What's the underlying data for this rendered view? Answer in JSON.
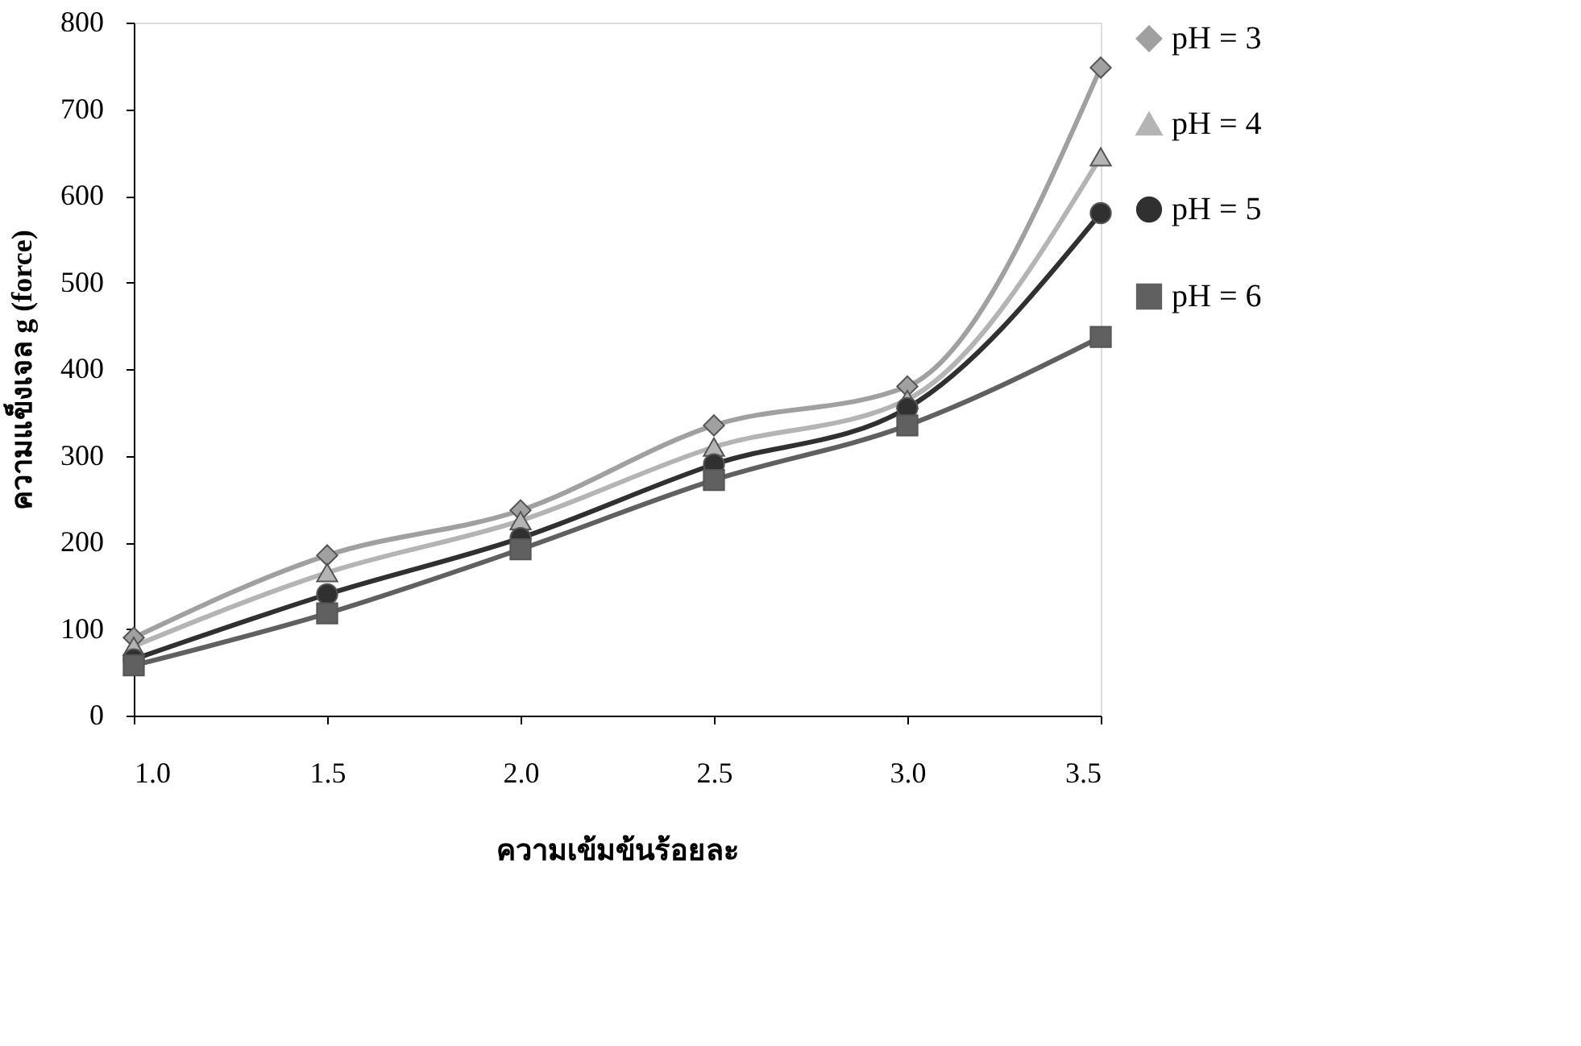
{
  "chart_data": {
    "type": "line",
    "xlabel": "ความเข้มข้นร้อยละ",
    "ylabel": "ความแข็งเจล g (force)",
    "x": [
      1.0,
      1.5,
      2.0,
      2.5,
      3.0,
      3.5
    ],
    "series": [
      {
        "name": "pH = 3",
        "color": "#a0a0a0",
        "marker": "diamond",
        "values": [
          90,
          185,
          237,
          335,
          380,
          748
        ]
      },
      {
        "name": "pH = 4",
        "color": "#b4b4b4",
        "marker": "triangle",
        "values": [
          80,
          165,
          225,
          310,
          365,
          645
        ]
      },
      {
        "name": "pH = 5",
        "color": "#303030",
        "marker": "circle",
        "values": [
          65,
          140,
          205,
          290,
          355,
          580
        ]
      },
      {
        "name": "pH = 6",
        "color": "#606060",
        "marker": "square",
        "values": [
          58,
          118,
          192,
          272,
          335,
          437
        ]
      }
    ],
    "xlim": [
      1.0,
      3.5
    ],
    "xticks": [
      {
        "value": 1.0,
        "label": "1.0"
      },
      {
        "value": 1.5,
        "label": "1.5"
      },
      {
        "value": 2.0,
        "label": "2.0"
      },
      {
        "value": 2.5,
        "label": "2.5"
      },
      {
        "value": 3.0,
        "label": "3.0"
      },
      {
        "value": 3.5,
        "label": "3.5"
      }
    ],
    "ylim": [
      0,
      800
    ],
    "yticks": [
      0,
      100,
      200,
      300,
      400,
      500,
      600,
      700,
      800
    ],
    "grid": false,
    "legend": "right",
    "line_style": "solid"
  }
}
